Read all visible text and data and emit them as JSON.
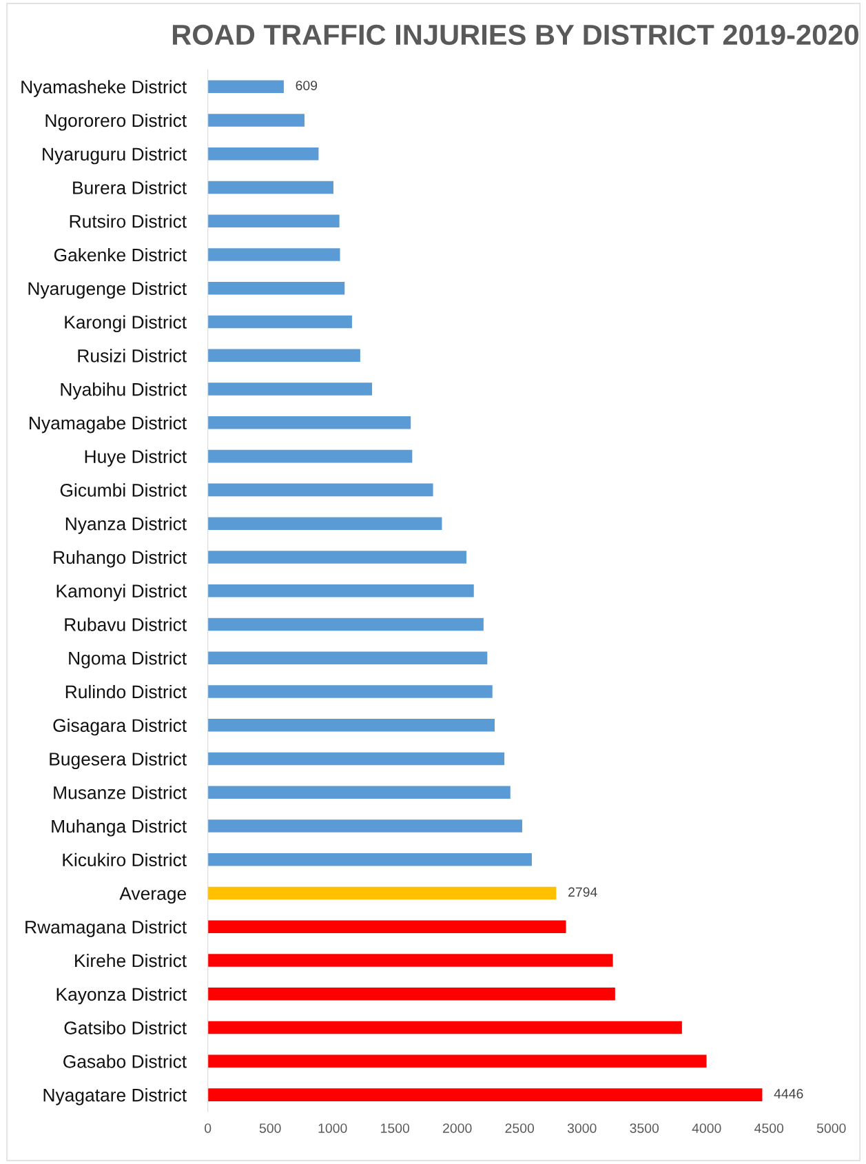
{
  "chart_data": {
    "type": "bar",
    "orientation": "horizontal",
    "title": "ROAD TRAFFIC INJURIES BY DISTRICT 2019-2020",
    "categories": [
      "Nyamasheke District",
      "Ngororero District",
      "Nyaruguru District",
      "Burera District",
      "Rutsiro District",
      "Gakenke District",
      "Nyarugenge District",
      "Karongi District",
      "Rusizi District",
      "Nyabihu District",
      "Nyamagabe District",
      "Huye District",
      "Gicumbi District",
      "Nyanza District",
      "Ruhango District",
      "Kamonyi District",
      "Rubavu District",
      "Ngoma District",
      "Rulindo District",
      "Gisagara District",
      "Bugesera District",
      "Musanze District",
      "Muhanga District",
      "Kicukiro District",
      "Average",
      "Rwamagana District",
      "Kirehe District",
      "Kayonza District",
      "Gatsibo District",
      "Gasabo District",
      "Nyagatare District"
    ],
    "values": [
      609,
      775,
      888,
      1007,
      1055,
      1060,
      1097,
      1156,
      1222,
      1317,
      1627,
      1639,
      1806,
      1877,
      2074,
      2133,
      2211,
      2241,
      2282,
      2300,
      2378,
      2426,
      2521,
      2598,
      2794,
      2872,
      3248,
      3266,
      3802,
      3999,
      4446
    ],
    "colors": [
      "#5b9bd5",
      "#5b9bd5",
      "#5b9bd5",
      "#5b9bd5",
      "#5b9bd5",
      "#5b9bd5",
      "#5b9bd5",
      "#5b9bd5",
      "#5b9bd5",
      "#5b9bd5",
      "#5b9bd5",
      "#5b9bd5",
      "#5b9bd5",
      "#5b9bd5",
      "#5b9bd5",
      "#5b9bd5",
      "#5b9bd5",
      "#5b9bd5",
      "#5b9bd5",
      "#5b9bd5",
      "#5b9bd5",
      "#5b9bd5",
      "#5b9bd5",
      "#5b9bd5",
      "#ffc000",
      "#ff0000",
      "#ff0000",
      "#ff0000",
      "#ff0000",
      "#ff0000",
      "#ff0000"
    ],
    "value_labels": [
      "609",
      null,
      null,
      null,
      null,
      null,
      null,
      null,
      null,
      null,
      null,
      null,
      null,
      null,
      null,
      null,
      null,
      null,
      null,
      null,
      null,
      null,
      null,
      null,
      "2794",
      null,
      null,
      null,
      null,
      null,
      "4446"
    ],
    "xlim": [
      0,
      5000
    ],
    "xticks": [
      0,
      500,
      1000,
      1500,
      2000,
      2500,
      3000,
      3500,
      4000,
      4500,
      5000
    ],
    "grid": false,
    "legend": false
  }
}
